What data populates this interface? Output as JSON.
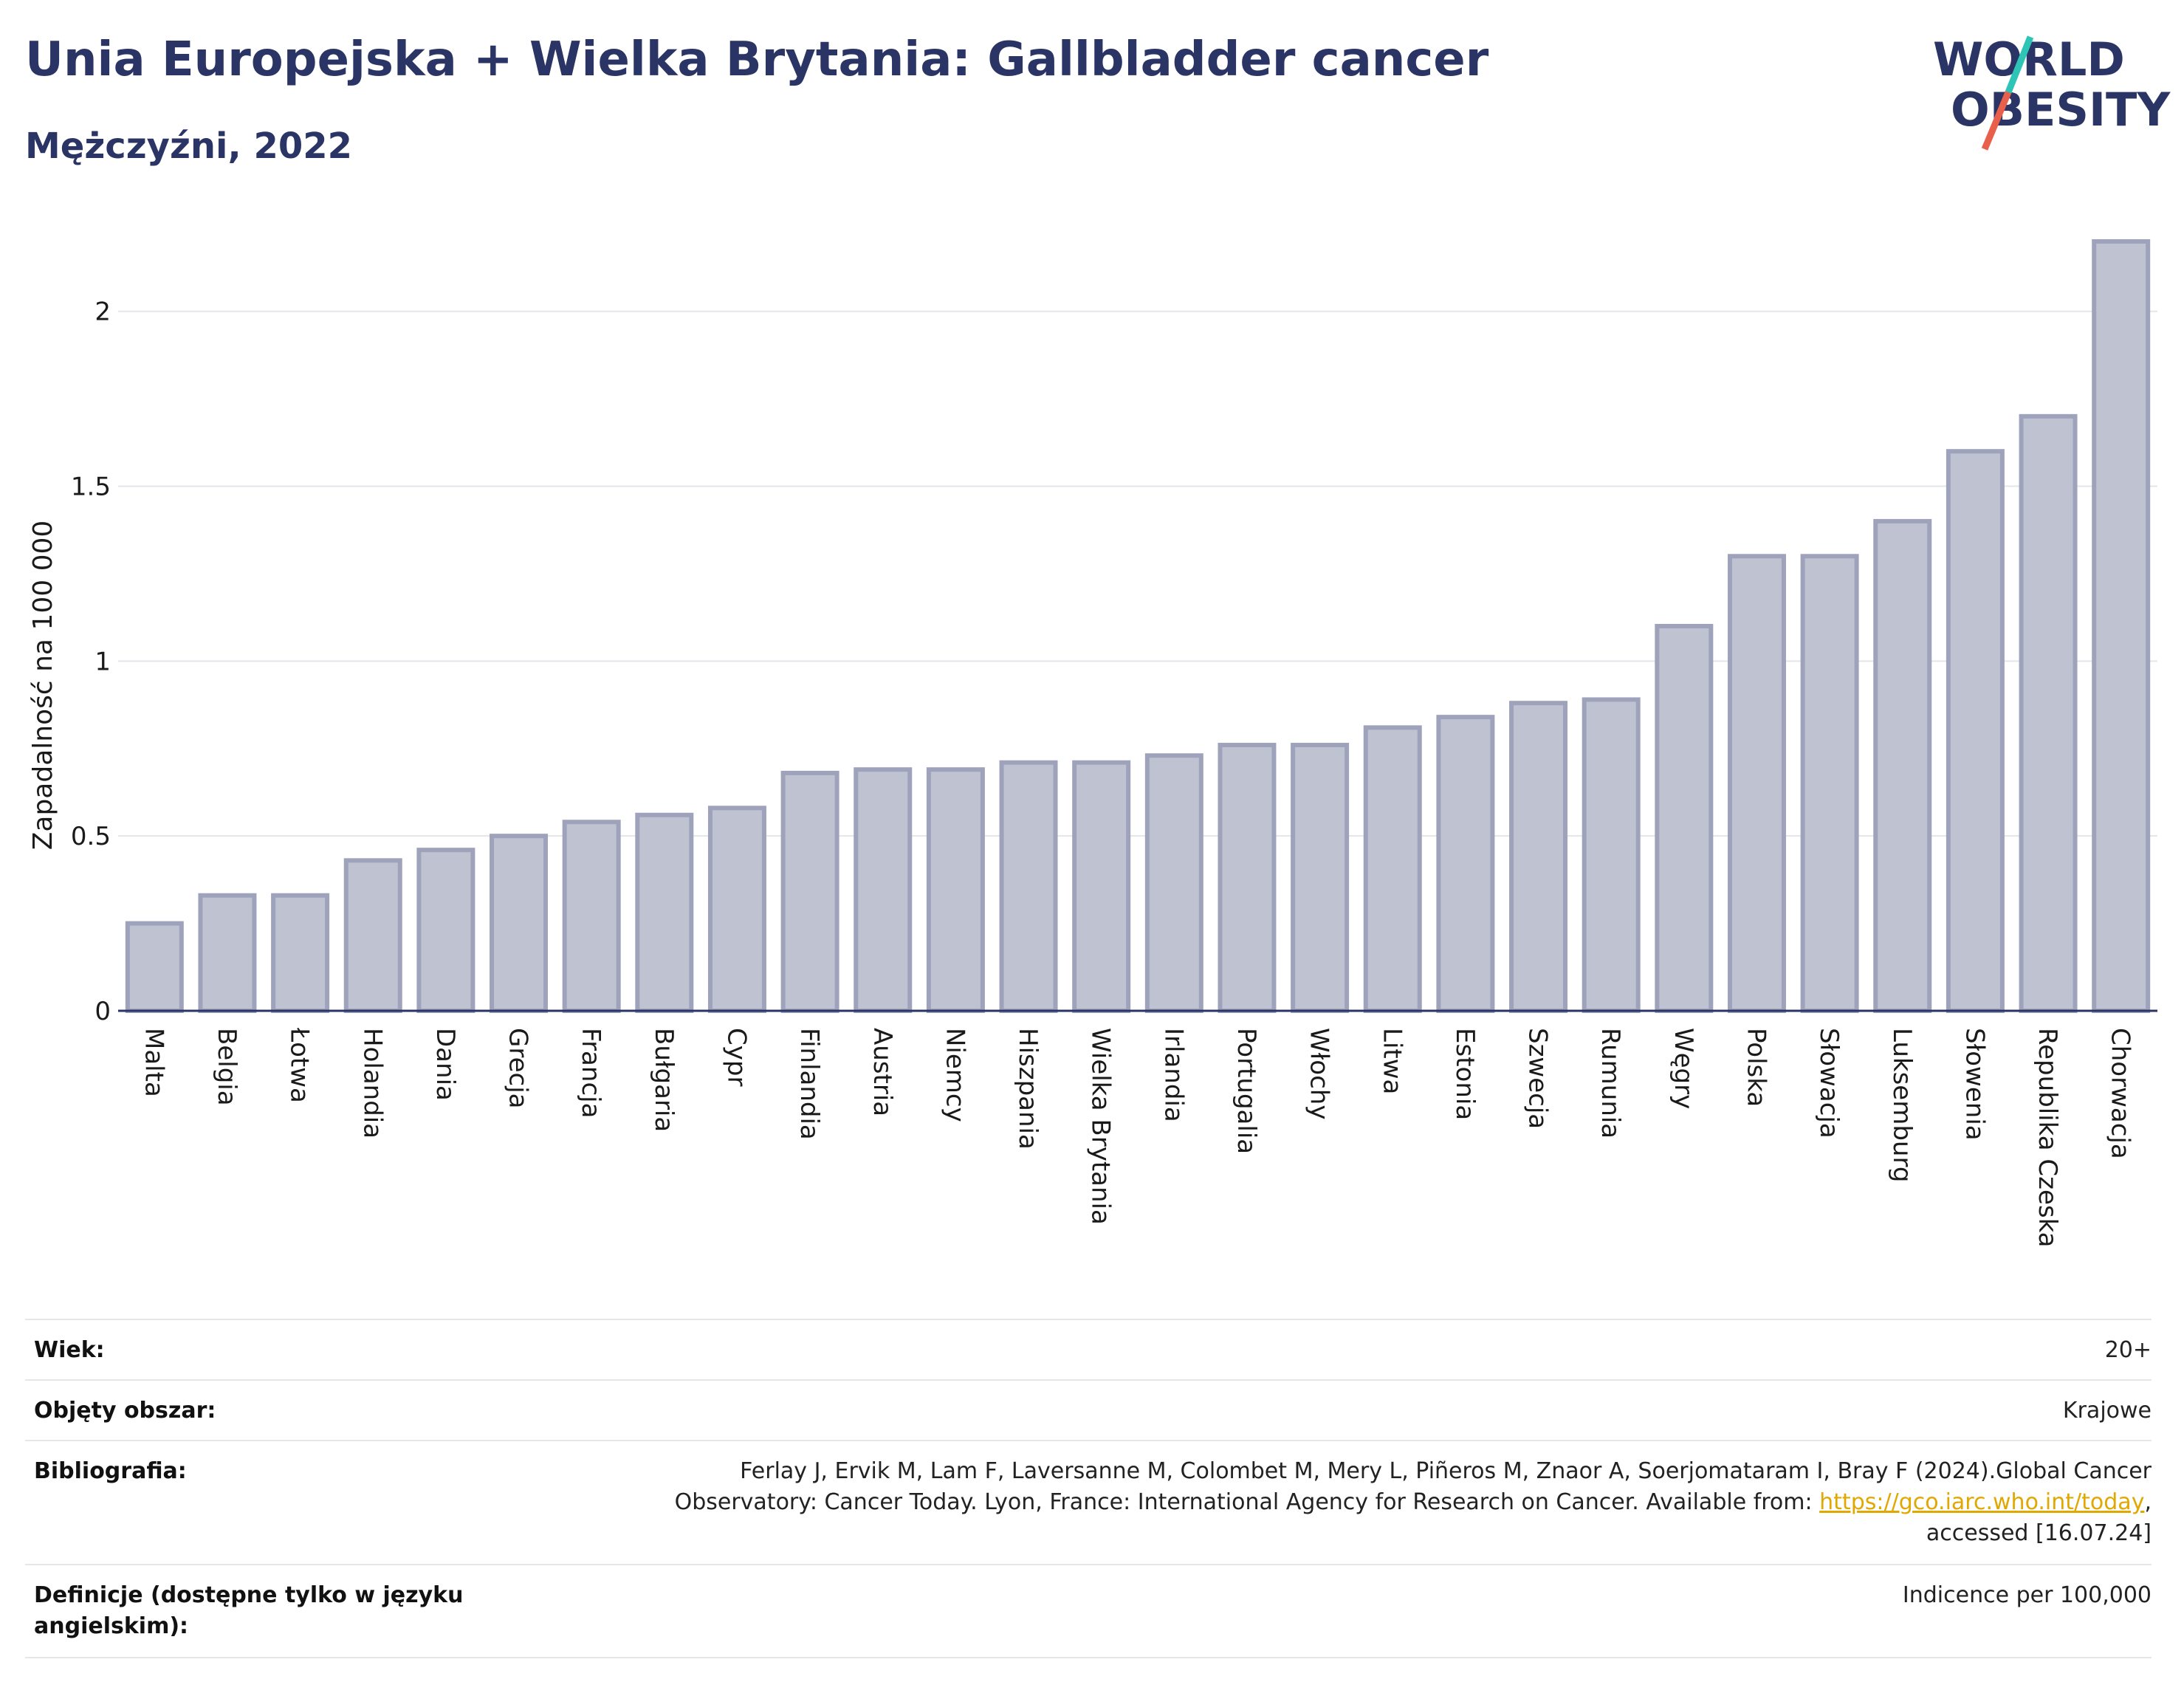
{
  "header": {
    "title": "Unia Europejska + Wielka Brytania: Gallbladder cancer",
    "subtitle": "Mężczyźni, 2022"
  },
  "logo": {
    "line1": "WORLD",
    "line2": "OBESITY",
    "color_text": "#2b3565",
    "color_slash_top": "#2ec4b6",
    "color_slash_bottom": "#e8604c"
  },
  "chart_data": {
    "type": "bar",
    "ylabel": "Zapadalność na 100 000",
    "xlabel": "",
    "ylim": [
      0,
      2.2
    ],
    "yticks": [
      0,
      0.5,
      1,
      1.5,
      2
    ],
    "ytick_labels": [
      "0",
      "0.5",
      "1",
      "1.5",
      "2"
    ],
    "grid": true,
    "categories": [
      "Malta",
      "Belgia",
      "Łotwa",
      "Holandia",
      "Dania",
      "Grecja",
      "Francja",
      "Bułgaria",
      "Cypr",
      "Finlandia",
      "Austria",
      "Niemcy",
      "Hiszpania",
      "Wielka Brytania",
      "Irlandia",
      "Portugalia",
      "Włochy",
      "Litwa",
      "Estonia",
      "Szwecja",
      "Rumunia",
      "Węgry",
      "Polska",
      "Słowacja",
      "Luksemburg",
      "Słowenia",
      "Republika Czeska",
      "Chorwacja"
    ],
    "values": [
      0.25,
      0.33,
      0.33,
      0.43,
      0.46,
      0.5,
      0.54,
      0.56,
      0.58,
      0.68,
      0.69,
      0.69,
      0.71,
      0.71,
      0.73,
      0.76,
      0.76,
      0.81,
      0.84,
      0.88,
      0.89,
      1.1,
      1.3,
      1.3,
      1.4,
      1.6,
      1.7,
      2.2
    ],
    "bar_fill": "#bfc2d1",
    "bar_stroke": "#9ea3bb"
  },
  "meta": {
    "age_label": "Wiek:",
    "age_value": "20+",
    "area_label": "Objęty obszar:",
    "area_value": "Krajowe",
    "bib_label": "Bibliografia:",
    "bib_line1": "Ferlay J, Ervik M, Lam F, Laversanne M, Colombet M, Mery L, Piñeros M, Znaor A, Soerjomataram I, Bray F (2024).Global Cancer",
    "bib_line2_pre": "Observatory: Cancer Today. Lyon, France: International Agency for Research on Cancer. Available from: ",
    "bib_link": "https://gco.iarc.who.int/today",
    "bib_line2_post": ",",
    "bib_line3": "accessed [16.07.24]",
    "def_label_line1": "Definicje (dostępne tylko w języku",
    "def_label_line2": "angielskim):",
    "def_value": "Indicence per 100,000"
  }
}
